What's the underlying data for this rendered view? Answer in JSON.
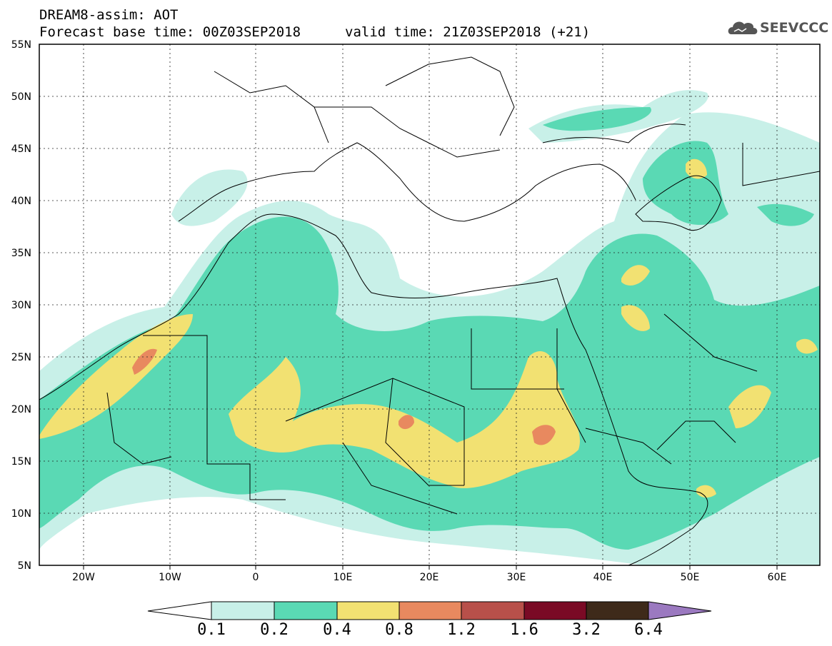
{
  "header": {
    "title_line1": "DREAM8-assim: AOT",
    "title_line2": "Forecast base time: 00Z03SEP2018",
    "valid_time": "valid time: 21Z03SEP2018 (+21)",
    "logo_text": "SEEVCCC",
    "logo_icon": "cloud-icon"
  },
  "map": {
    "lat_labels": [
      "55N",
      "50N",
      "45N",
      "40N",
      "35N",
      "30N",
      "25N",
      "20N",
      "15N",
      "10N",
      "5N"
    ],
    "lon_labels": [
      "20W",
      "10W",
      "0",
      "10E",
      "20E",
      "30E",
      "40E",
      "50E",
      "60E"
    ],
    "lon_range": [
      -25,
      65
    ],
    "lat_range": [
      5,
      55
    ]
  },
  "colorbar": {
    "labels": [
      "0.1",
      "0.2",
      "0.4",
      "0.8",
      "1.2",
      "1.6",
      "3.2",
      "6.4"
    ],
    "colors": [
      "#ffffff",
      "#c8f0e8",
      "#5ad9b4",
      "#f2e172",
      "#e8895f",
      "#b8504a",
      "#7a0a25",
      "#3e2a1a",
      "#9b79c0"
    ]
  }
}
